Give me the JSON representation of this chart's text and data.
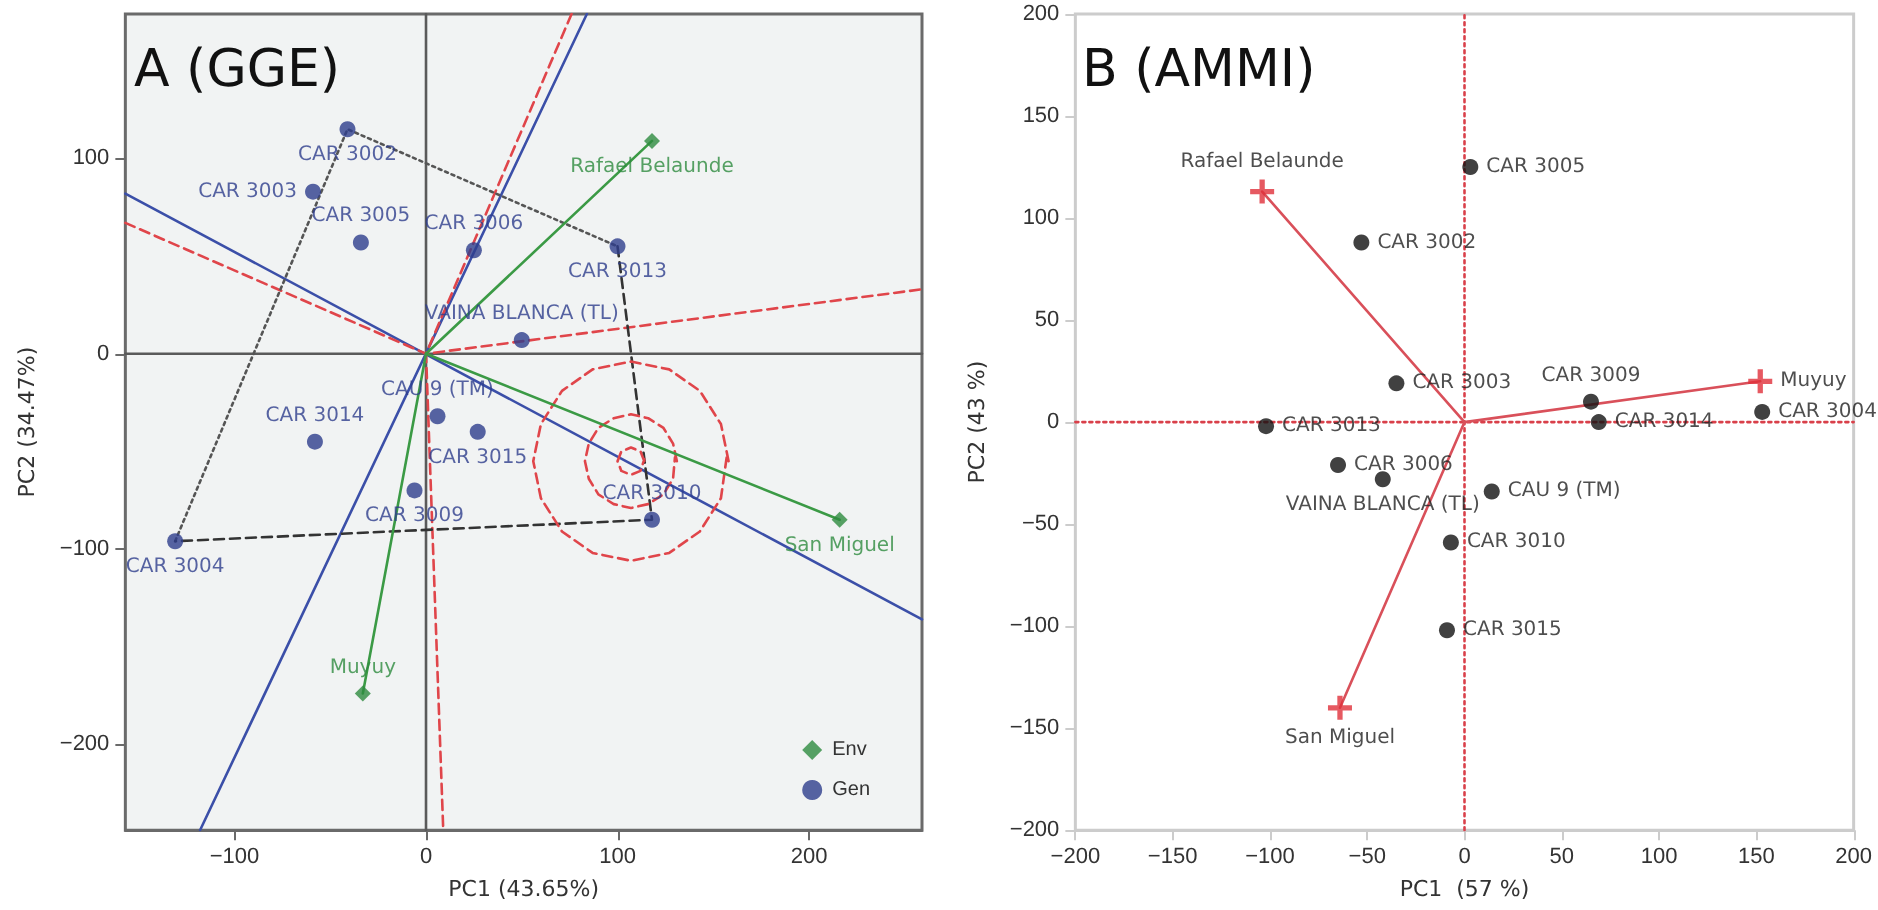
{
  "chart_data": [
    {
      "type": "scatter",
      "title": "A (GGE)",
      "xlabel": "PC1 (43.65%)",
      "ylabel": "PC2 (34.47%)",
      "xlim": [
        -157,
        259
      ],
      "ylim": [
        -244,
        174
      ],
      "xticks": [
        -100,
        0,
        100,
        200
      ],
      "yticks": [
        -200,
        -100,
        0,
        100
      ],
      "legend": "bottom right",
      "grid": false,
      "series": [
        {
          "type": "line",
          "color": "#5a5a5a",
          "marker": "none",
          "line_style": "solid",
          "x": [
            0,
            0
          ],
          "values": [
            -244,
            174
          ]
        },
        {
          "type": "line",
          "color": "#5a5a5a",
          "marker": "none",
          "line_style": "solid",
          "x": [
            -157,
            259
          ],
          "values": [
            0,
            0
          ]
        },
        {
          "type": "line",
          "color": "#3b4fa8",
          "marker": "none",
          "line_style": "solid",
          "x": [
            -157,
            259
          ],
          "values": [
            82,
            -136
          ]
        },
        {
          "type": "line",
          "color": "#3b4fa8",
          "marker": "none",
          "line_style": "solid",
          "x": [
            -118,
            84
          ],
          "values": [
            -244,
            174
          ]
        },
        {
          "type": "line",
          "color": "#e0454a",
          "marker": "none",
          "line_style": "dashed",
          "x": [
            -157,
            0,
            259
          ],
          "values": [
            67,
            0,
            33
          ]
        },
        {
          "type": "line",
          "color": "#e0454a",
          "marker": "none",
          "line_style": "dashed",
          "x": [
            76,
            0,
            9
          ],
          "values": [
            174,
            0,
            -244
          ]
        },
        {
          "type": "line",
          "color": "#555555",
          "marker": "none",
          "line_style": "dotted",
          "x": [
            -131,
            -41,
            100
          ],
          "values": [
            -96,
            115,
            55
          ]
        },
        {
          "type": "line",
          "color": "#333333",
          "marker": "none",
          "line_style": "dashed",
          "x": [
            100,
            118,
            -131
          ],
          "values": [
            55,
            -85,
            -96
          ]
        },
        {
          "type": "line",
          "color": "#e0454a",
          "marker": "none",
          "line_style": "dashed",
          "x": [
            158,
            154,
            143,
            127,
            107,
            87,
            71,
            60,
            56,
            60,
            71,
            87,
            107,
            127,
            143,
            154,
            157
          ],
          "values": [
            -55,
            -36,
            -19,
            -8,
            -4,
            -8,
            -19,
            -36,
            -55,
            -74,
            -91,
            -102,
            -106,
            -102,
            -91,
            -74,
            -53
          ]
        },
        {
          "type": "line",
          "color": "#e0454a",
          "marker": "none",
          "line_style": "dashed",
          "x": [
            131,
            129,
            124,
            116,
            107,
            98,
            90,
            85,
            83,
            85,
            90,
            98,
            107,
            116,
            124,
            129,
            130
          ],
          "values": [
            -55,
            -46,
            -38,
            -33,
            -31,
            -33,
            -38,
            -46,
            -55,
            -64,
            -72,
            -77,
            -79,
            -77,
            -72,
            -64,
            -53
          ]
        },
        {
          "type": "line",
          "color": "#e0454a",
          "marker": "none",
          "line_style": "dashed",
          "x": [
            114,
            112,
            107,
            102,
            100,
            102,
            107,
            112,
            114
          ],
          "values": [
            -55,
            -50,
            -48,
            -50,
            -55,
            -60,
            -62,
            -60,
            -54
          ]
        },
        {
          "type": "line",
          "color": "#3b9a45",
          "marker": "none",
          "line_style": "solid",
          "x": [
            0,
            118
          ],
          "values": [
            0,
            109
          ]
        },
        {
          "type": "line",
          "color": "#3b9a45",
          "marker": "none",
          "line_style": "solid",
          "x": [
            0,
            216
          ],
          "values": [
            0,
            -85
          ]
        },
        {
          "type": "line",
          "color": "#3b9a45",
          "marker": "none",
          "line_style": "solid",
          "x": [
            0,
            -33
          ],
          "values": [
            0,
            -174
          ]
        },
        {
          "name": "Env",
          "type": "scatter",
          "marker": "diamond",
          "color": "#2e8b3e",
          "x": [
            118,
            216,
            -33
          ],
          "values": [
            109,
            -85,
            -174
          ],
          "value_labels": [
            "Rafael Belaunde",
            "San Miguel",
            "Muyuy"
          ]
        },
        {
          "name": "Gen",
          "type": "scatter",
          "marker": "circle",
          "color": "#2e3d8c",
          "x": [
            -41,
            -59,
            -34,
            25,
            100,
            50,
            6,
            27,
            -58,
            -6,
            -131,
            118
          ],
          "values": [
            115,
            83,
            57,
            53,
            55,
            7,
            -32,
            -40,
            -45,
            -70,
            -96,
            -85
          ],
          "value_labels": [
            "CAR 3002",
            "CAR 3003",
            "CAR 3005",
            "CAR 3006",
            "CAR 3013",
            "VAINA BLANCA (TL)",
            "CAU 9 (TM)",
            "CAR 3015",
            "CAR 3014",
            "CAR 3009",
            "CAR 3004",
            "CAR 3010"
          ]
        }
      ]
    },
    {
      "type": "scatter",
      "title": "B (AMMI)",
      "xlabel": "PC1  (57 %)",
      "ylabel": "PC2 (43 %)",
      "xlim": [
        -200,
        200
      ],
      "ylim": [
        -200,
        200
      ],
      "xticks": [
        -200,
        -150,
        -100,
        -50,
        0,
        50,
        100,
        150,
        200
      ],
      "yticks": [
        -200,
        -150,
        -100,
        -50,
        0,
        50,
        100,
        150,
        200
      ],
      "grid": false,
      "series": [
        {
          "type": "line",
          "color": "#d9404a",
          "marker": "none",
          "line_style": "dotted",
          "x": [
            0,
            0
          ],
          "values": [
            -200,
            200
          ]
        },
        {
          "type": "line",
          "color": "#d9404a",
          "marker": "none",
          "line_style": "dotted",
          "x": [
            -200,
            200
          ],
          "values": [
            0,
            0
          ]
        },
        {
          "type": "line",
          "color": "#d9505a",
          "marker": "none",
          "line_style": "solid",
          "x": [
            0,
            -104
          ],
          "values": [
            0,
            113
          ]
        },
        {
          "type": "line",
          "color": "#d9505a",
          "marker": "none",
          "line_style": "solid",
          "x": [
            0,
            152
          ],
          "values": [
            0,
            20
          ]
        },
        {
          "type": "line",
          "color": "#d9505a",
          "marker": "none",
          "line_style": "solid",
          "x": [
            0,
            -64
          ],
          "values": [
            0,
            -140
          ]
        },
        {
          "type": "scatter",
          "marker": "circle",
          "color": "#111111",
          "x": [
            3,
            -53,
            -35,
            -102,
            -65,
            -42,
            14,
            -7,
            -9,
            65,
            69,
            153
          ],
          "values": [
            125,
            88,
            19,
            -2,
            -21,
            -28,
            -34,
            -59,
            -102,
            10,
            0,
            5
          ],
          "value_labels": [
            "CAR 3005",
            "CAR 3002",
            "CAR 3003",
            "CAR 3013",
            "CAR 3006",
            "VAINA BLANCA (TL)",
            "CAU 9 (TM)",
            "CAR 3010",
            "CAR 3015",
            "CAR 3009",
            "CAR 3014",
            "CAR 3004"
          ]
        },
        {
          "type": "scatter",
          "marker": "cross",
          "color": "#e0303a",
          "x": [
            -104,
            152,
            -64
          ],
          "values": [
            113,
            20,
            -140
          ],
          "value_labels": [
            "Rafael Belaunde",
            "Muyuy",
            "San Miguel"
          ]
        }
      ]
    }
  ]
}
